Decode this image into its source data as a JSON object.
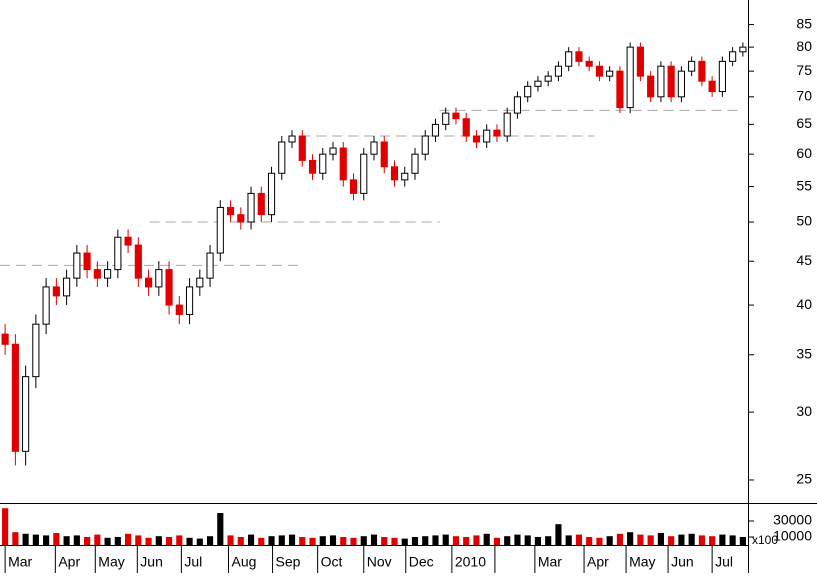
{
  "chart_data": {
    "type": "candlestick",
    "log_y": true,
    "up_color": "#000000",
    "down_color": "#e00000",
    "ylim": [
      23.5,
      90.8
    ],
    "yticks": [
      25,
      30,
      35,
      40,
      45,
      50,
      55,
      60,
      65,
      70,
      75,
      80,
      85
    ],
    "xlim": [
      -0.5,
      72.5
    ],
    "xticks": [
      {
        "value": 0,
        "label": "Mar"
      },
      {
        "value": 4.9,
        "label": "Apr"
      },
      {
        "value": 8.8,
        "label": "May"
      },
      {
        "value": 12.9,
        "label": "Jun"
      },
      {
        "value": 17.2,
        "label": "Jul"
      },
      {
        "value": 21.8,
        "label": "Aug"
      },
      {
        "value": 26.1,
        "label": "Sep"
      },
      {
        "value": 30.5,
        "label": "Oct"
      },
      {
        "value": 35,
        "label": "Nov"
      },
      {
        "value": 39.1,
        "label": "Dec"
      },
      {
        "value": 43.6,
        "label": "2010"
      },
      {
        "value": 47.8,
        "label": null
      },
      {
        "value": 51.7,
        "label": "Mar"
      },
      {
        "value": 56.5,
        "label": "Apr"
      },
      {
        "value": 60.6,
        "label": "May"
      },
      {
        "value": 64.7,
        "label": "Jun"
      },
      {
        "value": 69,
        "label": "Jul"
      }
    ],
    "open": [
      37,
      36,
      27,
      33,
      38,
      42,
      41,
      43,
      46,
      44,
      43,
      44,
      48,
      47,
      43,
      42,
      44,
      40,
      39,
      42,
      43,
      46,
      52,
      51,
      50,
      54,
      51,
      57,
      62,
      63,
      59,
      57,
      60,
      61,
      56,
      54,
      60,
      62,
      58,
      56,
      57,
      60,
      63,
      65,
      67,
      66,
      63,
      62,
      64,
      63,
      67,
      70,
      72,
      73,
      74,
      76,
      79,
      77,
      76,
      74,
      75,
      68,
      80,
      74,
      70,
      76,
      70,
      75,
      77,
      73,
      71,
      77,
      79
    ],
    "high": [
      38,
      37,
      34,
      39,
      43,
      43,
      44,
      47,
      47,
      45,
      45,
      49,
      49,
      48,
      44,
      45,
      45,
      41,
      43,
      44,
      47,
      53,
      53,
      52,
      55,
      55,
      58,
      63,
      64,
      64,
      60,
      61,
      62,
      62,
      57,
      61,
      63,
      63,
      59,
      58,
      61,
      64,
      66,
      68,
      68,
      67,
      64,
      65,
      65,
      68,
      71,
      73,
      74,
      75,
      77,
      80,
      80,
      78,
      77,
      76,
      76,
      81,
      81,
      75,
      77,
      77,
      76,
      78,
      78,
      74,
      78,
      80,
      81
    ],
    "low": [
      35,
      26,
      26,
      32,
      37,
      40,
      40,
      42,
      43,
      42,
      42,
      43,
      46,
      42,
      41,
      41,
      39,
      38,
      38,
      41,
      42,
      45,
      50,
      49,
      49,
      50,
      50,
      56,
      61,
      58,
      56,
      56,
      59,
      55,
      53,
      53,
      59,
      57,
      55,
      55,
      56,
      59,
      62,
      64,
      65,
      62,
      61,
      61,
      62,
      62,
      66,
      69,
      71,
      72,
      73,
      75,
      76,
      75,
      73,
      73,
      67,
      67,
      73,
      69,
      69,
      69,
      69,
      74,
      72,
      70,
      70,
      76,
      78
    ],
    "close": [
      36,
      27,
      33,
      38,
      42,
      41,
      43,
      46,
      44,
      43,
      44,
      48,
      47,
      43,
      42,
      44,
      40,
      39,
      42,
      43,
      46,
      52,
      51,
      50,
      54,
      51,
      57,
      62,
      63,
      59,
      57,
      60,
      61,
      56,
      54,
      60,
      62,
      58,
      56,
      57,
      60,
      63,
      65,
      67,
      66,
      63,
      62,
      64,
      63,
      67,
      70,
      72,
      73,
      74,
      76,
      79,
      77,
      76,
      74,
      75,
      68,
      80,
      74,
      70,
      76,
      70,
      75,
      77,
      73,
      71,
      77,
      79,
      80
    ],
    "reference_lines": [
      {
        "value": 44.5,
        "start": -0.5,
        "end": 28.8
      },
      {
        "value": 50,
        "start": 14.1,
        "end": 42.4
      },
      {
        "value": 63,
        "start": 28.8,
        "end": 57.5
      },
      {
        "value": 67.5,
        "start": 42.4,
        "end": 71.7
      }
    ],
    "volume": {
      "unit": "x100",
      "ylim": [
        0,
        52500
      ],
      "yticks": [
        10000,
        30000
      ],
      "values": [
        46000,
        16000,
        14000,
        13000,
        12000,
        15000,
        11000,
        12000,
        10000,
        13000,
        9000,
        10000,
        14000,
        12000,
        9000,
        11000,
        10000,
        12000,
        9000,
        8000,
        11000,
        40000,
        12000,
        10000,
        13000,
        9000,
        11000,
        12000,
        13000,
        10000,
        9000,
        11000,
        12000,
        10000,
        9000,
        11000,
        13000,
        10000,
        9000,
        8000,
        10000,
        11000,
        12000,
        13000,
        11000,
        10000,
        12000,
        14000,
        9000,
        11000,
        13000,
        12000,
        10000,
        11000,
        26000,
        12000,
        13000,
        10000,
        9000,
        11000,
        14000,
        16000,
        13000,
        12000,
        15000,
        11000,
        13000,
        14000,
        12000,
        11000,
        13000,
        12000,
        10000
      ]
    }
  }
}
